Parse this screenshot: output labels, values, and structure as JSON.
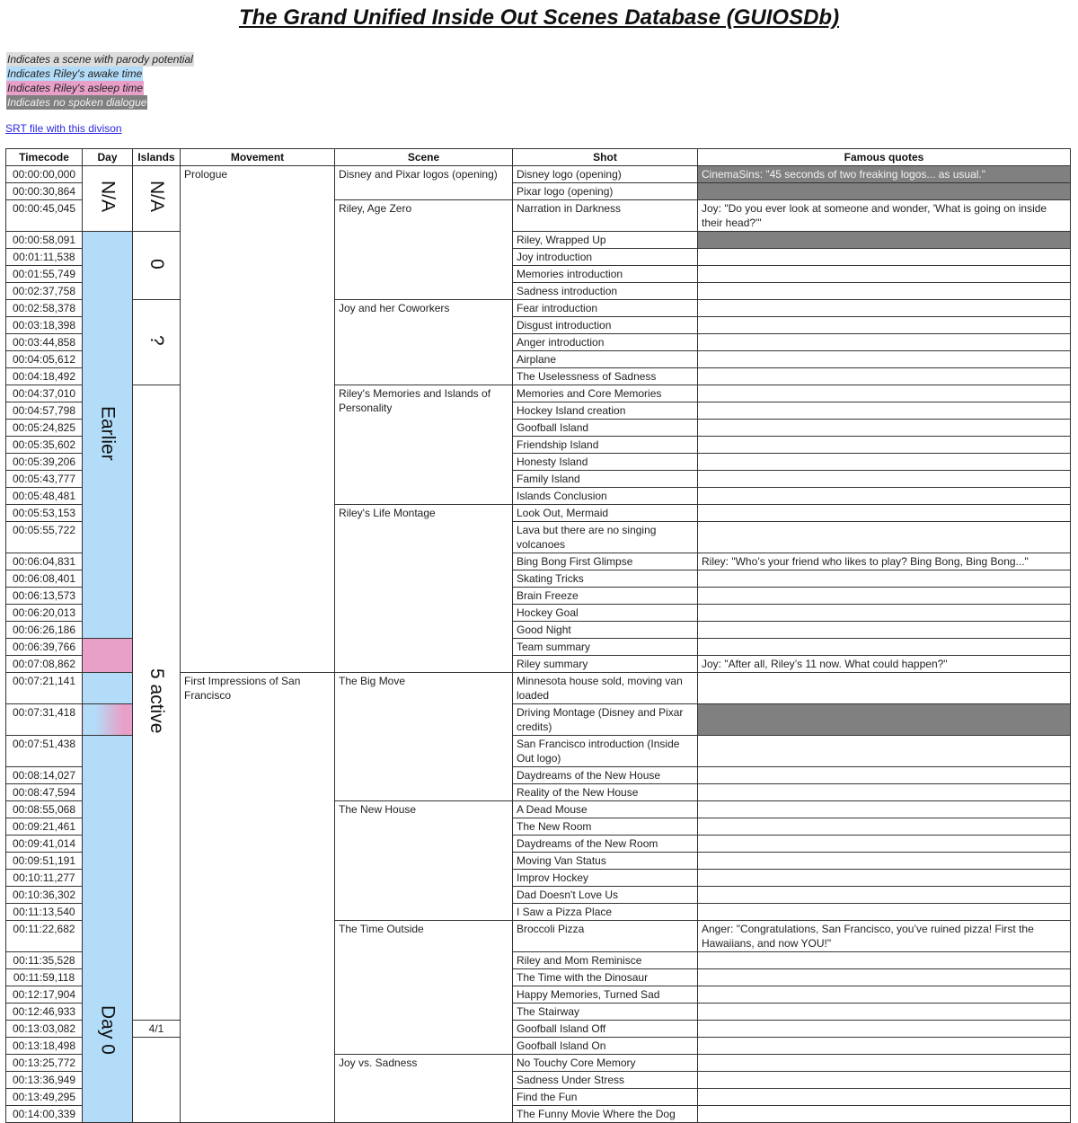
{
  "title": "The Grand Unified Inside Out Scenes Database (GUIOSDb)",
  "legend": [
    {
      "text": "Indicates a scene with parody potential",
      "color": "#dcdcdc",
      "text_color": "#222222"
    },
    {
      "text": "Indicates Riley's awake time",
      "color": "#b3dcf8",
      "text_color": "#222222"
    },
    {
      "text": "Indicates Riley's asleep time",
      "color": "#e8a0c8",
      "text_color": "#222222"
    },
    {
      "text": "Indicates no spoken dialogue",
      "color": "#808080",
      "text_color": "#f2f2f2"
    }
  ],
  "srt_link": "SRT file with this divison",
  "columns": [
    "Timecode",
    "Day",
    "Islands",
    "Movement",
    "Scene",
    "Shot",
    "Famous quotes"
  ],
  "day_groups": [
    {
      "label": "N/A",
      "from": "00:00:00,000",
      "to": "00:00:45,045",
      "state": "none"
    },
    {
      "label": "Earlier",
      "from": "00:00:58,091",
      "to": "00:06:26,186",
      "state": "awake"
    },
    {
      "label": "",
      "from": "00:06:39,766",
      "to": "00:07:08,862",
      "state": "asleep"
    },
    {
      "label": "",
      "from": "00:07:21,141",
      "to": "00:07:21,141",
      "state": "awake"
    },
    {
      "label": "",
      "from": "00:07:31,418",
      "to": "00:07:31,418",
      "state": "transition"
    },
    {
      "label": "Day 0",
      "from": "00:07:51,438",
      "to": "00:14:00,339",
      "state": "awake"
    }
  ],
  "island_groups": [
    {
      "label": "N/A",
      "from": "00:00:00,000",
      "to": "00:00:45,045",
      "vertical": true
    },
    {
      "label": "0",
      "from": "00:00:58,091",
      "to": "00:02:37,758",
      "vertical": true
    },
    {
      "label": "?",
      "from": "00:02:58,378",
      "to": "00:04:18,492",
      "vertical": true
    },
    {
      "label": "5 active",
      "from": "00:04:37,010",
      "to": "00:12:46,933",
      "vertical": true
    },
    {
      "label": "4/1",
      "from": "00:13:03,082",
      "to": "00:13:03,082",
      "vertical": false
    },
    {
      "label": "",
      "from": "00:13:18,498",
      "to": "00:14:00,339",
      "vertical": false
    }
  ],
  "movements": [
    {
      "name": "Prologue",
      "scenes": [
        {
          "name": "Disney and Pixar logos (opening)",
          "shots": [
            {
              "timecode": "00:00:00,000",
              "shot": "Disney logo (opening)",
              "quote": "CinemaSins: \"45 seconds of two freaking logos... as usual.\"",
              "no_dialogue": true
            },
            {
              "timecode": "00:00:30,864",
              "shot": "Pixar logo (opening)",
              "quote": "",
              "no_dialogue": true
            }
          ]
        },
        {
          "name": "Riley, Age Zero",
          "shots": [
            {
              "timecode": "00:00:45,045",
              "shot": "Narration in Darkness",
              "quote": "Joy: \"Do you ever look at someone and wonder, 'What is going on inside their head?'\""
            },
            {
              "timecode": "00:00:58,091",
              "shot": "Riley, Wrapped Up",
              "quote": "",
              "no_dialogue": true
            },
            {
              "timecode": "00:01:11,538",
              "shot": "Joy introduction",
              "quote": ""
            },
            {
              "timecode": "00:01:55,749",
              "shot": "Memories introduction",
              "quote": ""
            },
            {
              "timecode": "00:02:37,758",
              "shot": "Sadness introduction",
              "quote": ""
            }
          ]
        },
        {
          "name": "Joy and her Coworkers",
          "shots": [
            {
              "timecode": "00:02:58,378",
              "shot": "Fear introduction",
              "quote": ""
            },
            {
              "timecode": "00:03:18,398",
              "shot": "Disgust introduction",
              "quote": ""
            },
            {
              "timecode": "00:03:44,858",
              "shot": "Anger introduction",
              "quote": ""
            },
            {
              "timecode": "00:04:05,612",
              "shot": "Airplane",
              "quote": ""
            },
            {
              "timecode": "00:04:18,492",
              "shot": "The Uselessness of Sadness",
              "quote": ""
            }
          ]
        },
        {
          "name": "Riley's Memories and Islands of Personality",
          "shots": [
            {
              "timecode": "00:04:37,010",
              "shot": "Memories and Core Memories",
              "quote": ""
            },
            {
              "timecode": "00:04:57,798",
              "shot": "Hockey Island creation",
              "quote": ""
            },
            {
              "timecode": "00:05:24,825",
              "shot": "Goofball Island",
              "quote": ""
            },
            {
              "timecode": "00:05:35,602",
              "shot": "Friendship Island",
              "quote": ""
            },
            {
              "timecode": "00:05:39,206",
              "shot": "Honesty Island",
              "quote": ""
            },
            {
              "timecode": "00:05:43,777",
              "shot": "Family Island",
              "quote": ""
            },
            {
              "timecode": "00:05:48,481",
              "shot": "Islands Conclusion",
              "quote": ""
            }
          ]
        },
        {
          "name": "Riley's Life Montage",
          "shots": [
            {
              "timecode": "00:05:53,153",
              "shot": "Look Out, Mermaid",
              "quote": ""
            },
            {
              "timecode": "00:05:55,722",
              "shot": "Lava but there are no singing volcanoes",
              "quote": ""
            },
            {
              "timecode": "00:06:04,831",
              "shot": "Bing Bong First Glimpse",
              "quote": "Riley: \"Who’s your friend who likes to play? Bing Bong, Bing Bong...\""
            },
            {
              "timecode": "00:06:08,401",
              "shot": "Skating Tricks",
              "quote": ""
            },
            {
              "timecode": "00:06:13,573",
              "shot": "Brain Freeze",
              "quote": ""
            },
            {
              "timecode": "00:06:20,013",
              "shot": "Hockey Goal",
              "quote": ""
            },
            {
              "timecode": "00:06:26,186",
              "shot": "Good Night",
              "quote": ""
            },
            {
              "timecode": "00:06:39,766",
              "shot": "Team summary",
              "quote": ""
            },
            {
              "timecode": "00:07:08,862",
              "shot": "Riley summary",
              "quote": "Joy: \"After all, Riley’s 11 now. What could happen?\""
            }
          ]
        }
      ]
    },
    {
      "name": "First Impressions of San Francisco",
      "scenes": [
        {
          "name": "The Big Move",
          "shots": [
            {
              "timecode": "00:07:21,141",
              "shot": "Minnesota house sold, moving van loaded",
              "quote": ""
            },
            {
              "timecode": "00:07:31,418",
              "shot": "Driving Montage (Disney and Pixar credits)",
              "quote": "",
              "no_dialogue": true
            },
            {
              "timecode": "00:07:51,438",
              "shot": "San Francisco introduction (Inside Out logo)",
              "quote": ""
            },
            {
              "timecode": "00:08:14,027",
              "shot": "Daydreams of the New House",
              "quote": ""
            },
            {
              "timecode": "00:08:47,594",
              "shot": "Reality of the New House",
              "quote": ""
            }
          ]
        },
        {
          "name": "The New House",
          "shots": [
            {
              "timecode": "00:08:55,068",
              "shot": "A Dead Mouse",
              "quote": ""
            },
            {
              "timecode": "00:09:21,461",
              "shot": "The New Room",
              "quote": ""
            },
            {
              "timecode": "00:09:41,014",
              "shot": "Daydreams of the New Room",
              "quote": ""
            },
            {
              "timecode": "00:09:51,191",
              "shot": "Moving Van Status",
              "quote": ""
            },
            {
              "timecode": "00:10:11,277",
              "shot": "Improv Hockey",
              "quote": ""
            },
            {
              "timecode": "00:10:36,302",
              "shot": "Dad Doesn't Love Us",
              "quote": ""
            },
            {
              "timecode": "00:11:13,540",
              "shot": "I Saw a Pizza Place",
              "quote": ""
            }
          ]
        },
        {
          "name": "The Time Outside",
          "shots": [
            {
              "timecode": "00:11:22,682",
              "shot": "Broccoli Pizza",
              "quote": "Anger: \"Congratulations, San Francisco, you’ve ruined pizza! First the Hawaiians, and now YOU!\""
            },
            {
              "timecode": "00:11:35,528",
              "shot": "Riley and Mom Reminisce",
              "quote": ""
            },
            {
              "timecode": "00:11:59,118",
              "shot": "The Time with the Dinosaur",
              "quote": ""
            },
            {
              "timecode": "00:12:17,904",
              "shot": "Happy Memories, Turned Sad",
              "quote": ""
            },
            {
              "timecode": "00:12:46,933",
              "shot": "The Stairway",
              "quote": ""
            },
            {
              "timecode": "00:13:03,082",
              "shot": "Goofball Island Off",
              "quote": ""
            },
            {
              "timecode": "00:13:18,498",
              "shot": "Goofball Island On",
              "quote": ""
            }
          ]
        },
        {
          "name": "Joy vs. Sadness",
          "shots": [
            {
              "timecode": "00:13:25,772",
              "shot": "No Touchy Core Memory",
              "quote": ""
            },
            {
              "timecode": "00:13:36,949",
              "shot": "Sadness Under Stress",
              "quote": ""
            },
            {
              "timecode": "00:13:49,295",
              "shot": "Find the Fun",
              "quote": ""
            },
            {
              "timecode": "00:14:00,339",
              "shot": "The Funny Movie Where the Dog",
              "quote": ""
            }
          ]
        }
      ]
    }
  ]
}
